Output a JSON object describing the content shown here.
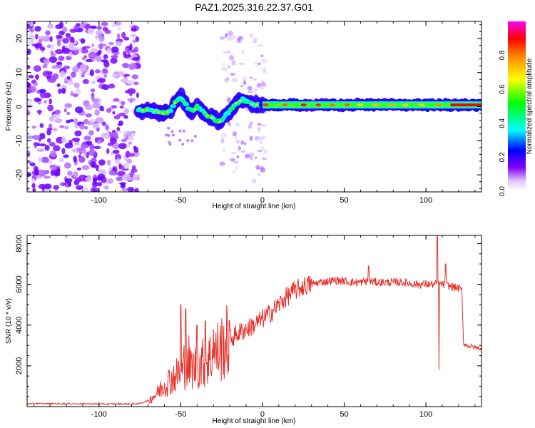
{
  "chart_data": [
    {
      "type": "heatmap",
      "title": "PAZ1.2025.316.22.37.G01",
      "xlabel": "Height of straight line (km)",
      "ylabel": "Frequency (Hz)",
      "xlim": [
        -144,
        134
      ],
      "ylim": [
        -25,
        25
      ],
      "xticks": [
        -100,
        -50,
        0,
        50,
        100
      ],
      "yticks": [
        -20,
        -10,
        0,
        10,
        20
      ],
      "colorbar": {
        "label": "Normalized spectral amplitude",
        "range": [
          0,
          1
        ],
        "ticks": [
          0.0,
          0.2,
          0.4,
          0.6,
          0.8
        ]
      },
      "colors": {
        "noise": "#9b5de5",
        "axis": "#000000"
      },
      "features": [
        {
          "name": "main-tone",
          "x_range": [
            0,
            134
          ],
          "frequency_hz": 0.5,
          "amplitude": 1.0
        },
        {
          "name": "wiggle-track",
          "points": [
            [
              -76,
              -1
            ],
            [
              -70,
              -1
            ],
            [
              -65,
              -1.5
            ],
            [
              -60,
              -2
            ],
            [
              -56,
              -1
            ],
            [
              -53,
              1.5
            ],
            [
              -50,
              3
            ],
            [
              -47,
              1
            ],
            [
              -45,
              -1
            ],
            [
              -42,
              -1.5
            ],
            [
              -40,
              0
            ],
            [
              -37,
              -1
            ],
            [
              -34,
              -2.5
            ],
            [
              -30,
              -3.5
            ],
            [
              -26,
              -4.5
            ],
            [
              -23,
              -2.5
            ],
            [
              -20,
              -1.5
            ],
            [
              -16,
              1
            ],
            [
              -12,
              2
            ],
            [
              -8,
              1
            ],
            [
              -4,
              0.5
            ],
            [
              0,
              0.5
            ]
          ]
        },
        {
          "name": "noise-region",
          "x_range": [
            -144,
            -76
          ],
          "frequency_range": [
            -25,
            25
          ]
        }
      ]
    },
    {
      "type": "line",
      "xlabel": "Height of straight line (km)",
      "ylabel": "SNR (10 * v/v)",
      "xlim": [
        -144,
        134
      ],
      "ylim": [
        0,
        8400
      ],
      "xticks": [
        -100,
        -50,
        0,
        50,
        100
      ],
      "yticks": [
        2000,
        4000,
        6000,
        8000
      ],
      "color": "#e8302a",
      "series": [
        {
          "name": "snr",
          "x": [
            -144,
            -120,
            -100,
            -80,
            -75,
            -70,
            -65,
            -60,
            -55,
            -50,
            -45,
            -40,
            -35,
            -30,
            -25,
            -20,
            -15,
            -10,
            -5,
            0,
            5,
            10,
            15,
            20,
            25,
            30,
            35,
            40,
            45,
            50,
            55,
            60,
            65,
            70,
            75,
            80,
            85,
            90,
            95,
            100,
            105,
            110,
            115,
            120,
            122,
            123,
            125,
            130,
            134
          ],
          "y": [
            150,
            140,
            130,
            130,
            150,
            300,
            600,
            1100,
            1400,
            1700,
            1900,
            2000,
            2200,
            2500,
            2900,
            3300,
            3600,
            3800,
            4000,
            4300,
            4600,
            5000,
            5400,
            5700,
            5900,
            6000,
            6100,
            6150,
            6200,
            6150,
            6100,
            6100,
            6150,
            6100,
            6100,
            6100,
            6100,
            6050,
            6000,
            6000,
            6000,
            6000,
            5900,
            5800,
            5700,
            3100,
            3000,
            2900,
            2850
          ]
        },
        {
          "name": "spikes",
          "x": [
            -50,
            -48,
            -47,
            -45,
            -40,
            -35,
            -30,
            65,
            107,
            108,
            112
          ],
          "y": [
            5000,
            3000,
            4800,
            3500,
            4000,
            4200,
            3800,
            6900,
            8400,
            1800,
            7000
          ]
        }
      ]
    }
  ]
}
